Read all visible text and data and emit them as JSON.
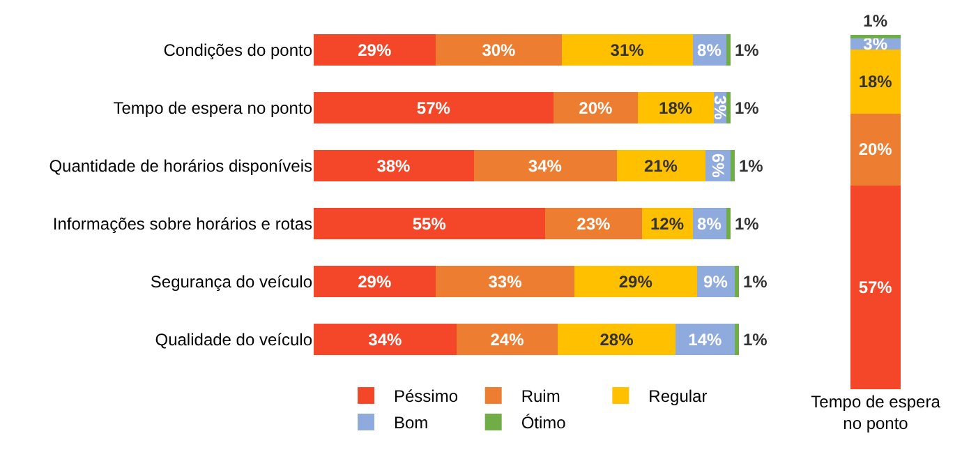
{
  "chart_data": [
    {
      "type": "bar",
      "orientation": "horizontal",
      "stacked": true,
      "tick_labels": "y",
      "legend": "bottom",
      "categories": [
        "Condições do ponto",
        "Tempo de espera no ponto",
        "Quantidade de horários disponíveis",
        "Informações sobre horários e rotas",
        "Segurança do veículo",
        "Qualidade do veículo"
      ],
      "series": [
        {
          "name": "Péssimo",
          "color": "#f4472a",
          "values": [
            29,
            57,
            38,
            55,
            29,
            34
          ],
          "value_labels": [
            "29%",
            "57%",
            "38%",
            "55%",
            "29%",
            "34%"
          ]
        },
        {
          "name": "Ruim",
          "color": "#ed7d31",
          "values": [
            30,
            20,
            34,
            23,
            33,
            24
          ],
          "value_labels": [
            "30%",
            "20%",
            "34%",
            "23%",
            "33%",
            "24%"
          ]
        },
        {
          "name": "Regular",
          "color": "#ffc000",
          "values": [
            31,
            18,
            21,
            12,
            29,
            28
          ],
          "value_labels": [
            "31%",
            "18%",
            "21%",
            "12%",
            "29%",
            "28%"
          ]
        },
        {
          "name": "Bom",
          "color": "#8faadc",
          "values": [
            8,
            3,
            6,
            8,
            9,
            14
          ],
          "value_labels": [
            "8%",
            "3%",
            "6%",
            "8%",
            "9%",
            "14%"
          ]
        },
        {
          "name": "Ótimo",
          "color": "#70ad47",
          "values": [
            1,
            1,
            1,
            1,
            1,
            1
          ],
          "value_labels": [
            "1%",
            "1%",
            "1%",
            "1%",
            "1%",
            "1%"
          ]
        }
      ]
    },
    {
      "type": "bar",
      "stacked": true,
      "tick_labels": "x",
      "categories": [
        "Tempo de espera no ponto"
      ],
      "series": [
        {
          "color": "#f4472a",
          "values": [
            57
          ],
          "value_labels": [
            "57%"
          ]
        },
        {
          "color": "#ed7d31",
          "values": [
            20
          ],
          "value_labels": [
            "20%"
          ]
        },
        {
          "color": "#ffc000",
          "values": [
            18
          ],
          "value_labels": [
            "18%"
          ]
        },
        {
          "color": "#8faadc",
          "values": [
            3
          ],
          "value_labels": [
            "3%"
          ]
        },
        {
          "color": "#70ad47",
          "values": [
            1
          ],
          "value_labels": [
            "1%"
          ]
        }
      ]
    }
  ]
}
